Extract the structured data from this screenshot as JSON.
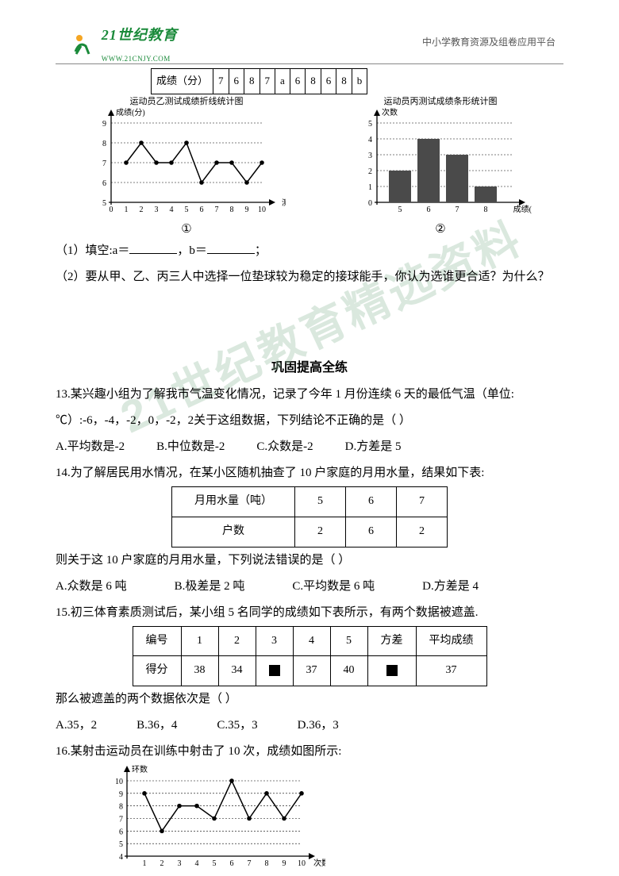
{
  "header": {
    "logo_main": "21世纪教育",
    "logo_sub": "WWW.21CNJY.COM",
    "right_text": "中小学教育资源及组卷应用平台"
  },
  "watermark": "21世纪教育精选资料",
  "top_table": {
    "row_label": "成绩（分）",
    "cells": [
      "7",
      "6",
      "8",
      "7",
      "a",
      "6",
      "8",
      "6",
      "8",
      "b"
    ]
  },
  "chart1": {
    "title": "运动员乙测试成绩折线统计图",
    "y_label": "成绩(分)",
    "x_label": "测试序号",
    "y_ticks": [
      5,
      6,
      7,
      8,
      9
    ],
    "x_ticks": [
      0,
      1,
      2,
      3,
      4,
      5,
      6,
      7,
      8,
      9,
      10
    ],
    "points": [
      {
        "x": 1,
        "y": 7
      },
      {
        "x": 2,
        "y": 8
      },
      {
        "x": 3,
        "y": 7
      },
      {
        "x": 4,
        "y": 7
      },
      {
        "x": 5,
        "y": 8
      },
      {
        "x": 6,
        "y": 6
      },
      {
        "x": 7,
        "y": 7
      },
      {
        "x": 8,
        "y": 7
      },
      {
        "x": 9,
        "y": 6
      },
      {
        "x": 10,
        "y": 7
      }
    ],
    "mark": "①",
    "colors": {
      "axis": "#000000",
      "line": "#000000",
      "grid": "#000000"
    }
  },
  "chart2": {
    "title": "运动员丙测试成绩条形统计图",
    "y_label": "次数",
    "x_label": "成绩(分)",
    "y_ticks": [
      0,
      1,
      2,
      3,
      4,
      5
    ],
    "bars": [
      {
        "x": "5",
        "h": 2
      },
      {
        "x": "6",
        "h": 4
      },
      {
        "x": "7",
        "h": 3
      },
      {
        "x": "8",
        "h": 1
      }
    ],
    "mark": "②",
    "colors": {
      "axis": "#000000",
      "bar": "#4a4a4a"
    }
  },
  "q_fill": {
    "line1_pre": "（1）填空:a＝",
    "line1_mid": "，b＝",
    "line1_post": "；",
    "line2": "（2）要从甲、乙、丙三人中选择一位垫球较为稳定的接球能手，你认为选谁更合适？为什么？"
  },
  "section_title": "巩固提高全练",
  "q13": {
    "stem": "13.某兴趣小组为了解我市气温变化情况，记录了今年 1 月份连续 6 天的最低气温（单位:℃）:-6，-4，-2，0，-2，2关于这组数据，下列结论不正确的是（   ）",
    "opts": [
      "A.平均数是-2",
      "B.中位数是-2",
      "C.众数是-2",
      "D.方差是 5"
    ]
  },
  "q14": {
    "stem": "14.为了解居民用水情况，在某小区随机抽查了 10 户家庭的月用水量，结果如下表:",
    "table": {
      "r1": [
        "月用水量（吨）",
        "5",
        "6",
        "7"
      ],
      "r2": [
        "户数",
        "2",
        "6",
        "2"
      ]
    },
    "line2": "则关于这 10 户家庭的月用水量，下列说法错误的是（   ）",
    "opts": [
      "A.众数是 6 吨",
      "B.极差是 2 吨",
      "C.平均数是 6 吨",
      "D.方差是 4"
    ]
  },
  "q15": {
    "stem": "15.初三体育素质测试后，某小组 5 名同学的成绩如下表所示，有两个数据被遮盖.",
    "table": {
      "r1": [
        "编号",
        "1",
        "2",
        "3",
        "4",
        "5",
        "方差",
        "平均成绩"
      ],
      "r2": [
        "得分",
        "38",
        "34",
        "■",
        "37",
        "40",
        "■",
        "37"
      ]
    },
    "line2": "那么被遮盖的两个数据依次是（   ）",
    "opts": [
      "A.35，2",
      "B.36，4",
      "C.35，3",
      "D.36，3"
    ]
  },
  "q16": {
    "stem": "16.某射击运动员在训练中射击了 10 次，成绩如图所示:",
    "chart": {
      "y_label": "环数",
      "x_label": "次数",
      "y_ticks": [
        4,
        5,
        6,
        7,
        8,
        9,
        10
      ],
      "x_ticks": [
        1,
        2,
        3,
        4,
        5,
        6,
        7,
        8,
        9,
        10
      ],
      "points": [
        {
          "x": 1,
          "y": 9
        },
        {
          "x": 2,
          "y": 6
        },
        {
          "x": 3,
          "y": 8
        },
        {
          "x": 4,
          "y": 8
        },
        {
          "x": 5,
          "y": 7
        },
        {
          "x": 6,
          "y": 10
        },
        {
          "x": 7,
          "y": 7
        },
        {
          "x": 8,
          "y": 9
        },
        {
          "x": 9,
          "y": 7
        },
        {
          "x": 10,
          "y": 9
        }
      ],
      "colors": {
        "axis": "#000000",
        "line": "#000000"
      }
    }
  }
}
